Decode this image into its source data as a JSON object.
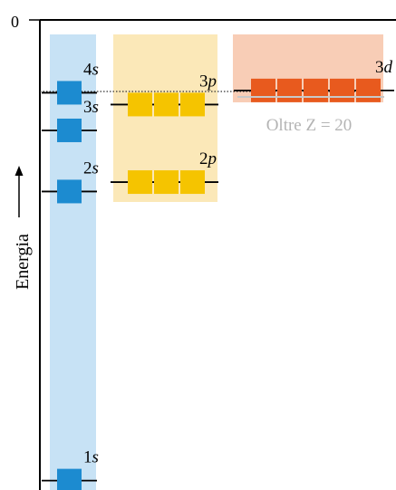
{
  "axis": {
    "zero_label": "0",
    "energy_label": "Energia"
  },
  "orbitals": [
    {
      "id": "1s",
      "num": "1",
      "letter": "s",
      "boxes": 1,
      "energy": 0.98,
      "color": "#1c8bd0"
    },
    {
      "id": "2s",
      "num": "2",
      "letter": "s",
      "boxes": 1,
      "energy": 0.365,
      "color": "#1c8bd0"
    },
    {
      "id": "3s",
      "num": "3",
      "letter": "s",
      "boxes": 1,
      "energy": 0.235,
      "color": "#1c8bd0"
    },
    {
      "id": "4s",
      "num": "4",
      "letter": "s",
      "boxes": 1,
      "energy": 0.155,
      "color": "#1c8bd0"
    },
    {
      "id": "2p",
      "num": "2",
      "letter": "p",
      "boxes": 3,
      "energy": 0.345,
      "color": "#f5c400"
    },
    {
      "id": "3p",
      "num": "3",
      "letter": "p",
      "boxes": 3,
      "energy": 0.18,
      "color": "#f5c400"
    },
    {
      "id": "3d",
      "num": "3",
      "letter": "d",
      "boxes": 5,
      "energy": 0.15,
      "color": "#e85a1e"
    }
  ],
  "note": {
    "text": "Oltre Z = 20",
    "color": "#b4b4b4"
  },
  "colors": {
    "s_band": "#c7e2f5",
    "p_band": "#fbe8b8",
    "d_band": "#f8cdb6",
    "axis": "#000000"
  }
}
